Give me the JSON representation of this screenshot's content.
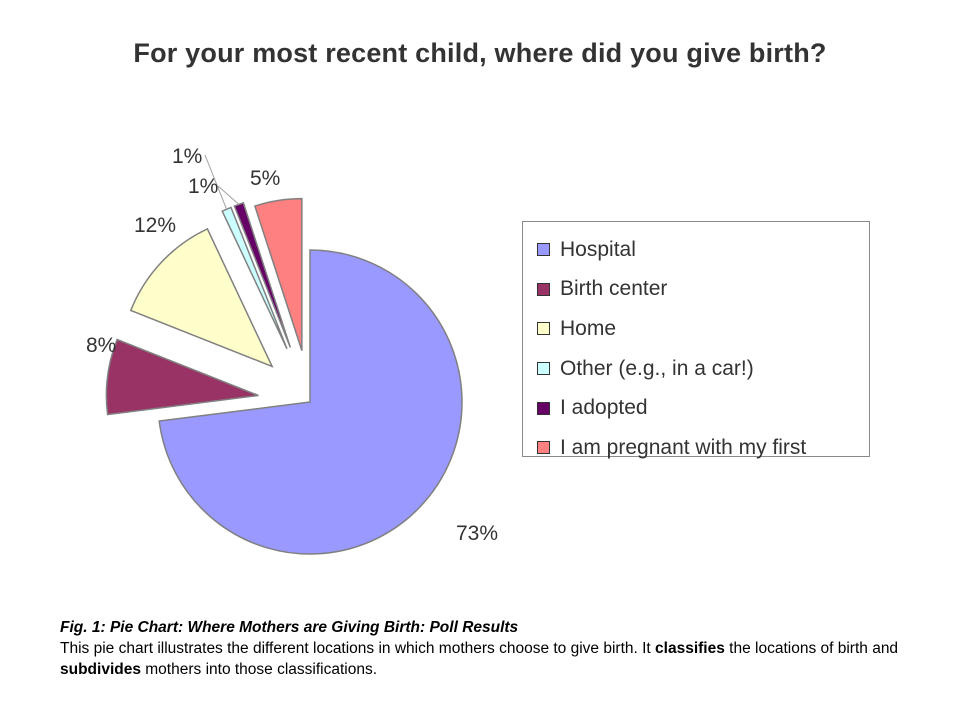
{
  "chart_data": {
    "type": "pie",
    "title": "For your most recent child, where did you give birth?",
    "categories": [
      "Hospital",
      "Birth center",
      "Home",
      "Other (e.g., in a car!)",
      "I adopted",
      "I am pregnant with my first"
    ],
    "values": [
      73,
      8,
      12,
      1,
      1,
      5
    ],
    "value_labels": [
      "73%",
      "8%",
      "12%",
      "1%",
      "1%",
      "5%"
    ],
    "colors": [
      "#9999ff",
      "#993366",
      "#ffffcc",
      "#ccffff",
      "#660066",
      "#ff8080"
    ],
    "exploded": true,
    "legend_placement": "right"
  },
  "caption": {
    "title": "Fig. 1: Pie Chart: Where Mothers are Giving Birth: Poll Results",
    "text_1": "This pie chart illustrates the different locations in which mothers choose to give birth.  It ",
    "bold_1": "classifies",
    "text_2": " the locations of birth and ",
    "bold_2": "subdivides",
    "text_3": " mothers into those classifications."
  }
}
